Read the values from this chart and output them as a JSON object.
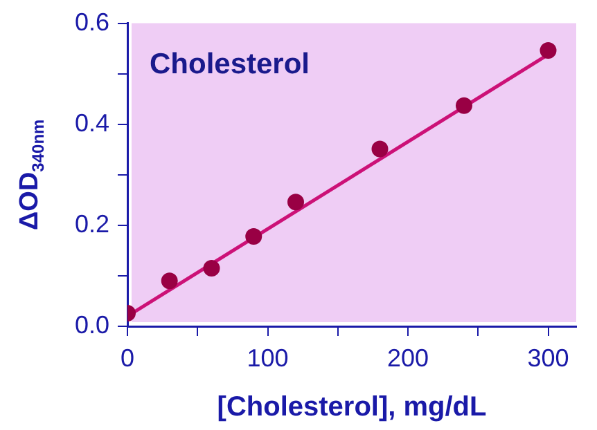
{
  "chart_data": {
    "type": "scatter",
    "title": "Cholesterol",
    "xlabel": "[Cholesterol], mg/dL",
    "ylabel": "ΔOD$_{340nm}$",
    "series": [
      {
        "marker": "circle",
        "color": "#990044",
        "x": [
          0,
          30,
          60,
          90,
          120,
          180,
          240,
          300
        ],
        "values": [
          0.026,
          0.09,
          0.115,
          0.178,
          0.246,
          0.351,
          0.437,
          0.546
        ]
      },
      {
        "type": "line",
        "marker": "none",
        "color": "#cc1177",
        "x": [
          0,
          300
        ],
        "values": [
          0.02,
          0.538
        ]
      }
    ],
    "xlim": [
      0,
      320
    ],
    "xticks": [
      0,
      {
        "value": 50,
        "label": null
      },
      100,
      {
        "value": 150,
        "label": null
      },
      200,
      {
        "value": 250,
        "label": null
      },
      300
    ],
    "ylim": [
      0,
      0.6
    ],
    "yticks": [
      {
        "value": 0,
        "label": "0.0"
      },
      {
        "value": 0.1,
        "label": null
      },
      {
        "value": 0.2,
        "label": "0.2"
      },
      {
        "value": 0.3,
        "label": null
      },
      {
        "value": 0.4,
        "label": "0.4"
      },
      {
        "value": 0.5,
        "label": null
      },
      {
        "value": 0.6,
        "label": "0.6"
      }
    ],
    "grid": false,
    "legend": false
  }
}
